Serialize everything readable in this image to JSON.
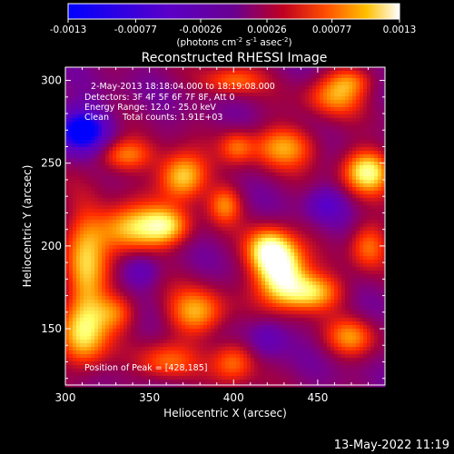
{
  "colorbar": {
    "ticks": [
      "-0.0013",
      "-0.00077",
      "-0.00026",
      "0.00026",
      "0.00077",
      "0.0013"
    ],
    "unit_label_main": "(photons cm",
    "unit_sup1": "-2",
    "unit_mid": " s",
    "unit_sup2": "-1",
    "unit_mid2": " asec",
    "unit_sup3": "-2",
    "unit_end": ")"
  },
  "chart_data": {
    "type": "heatmap",
    "title": "Reconstructed RHESSI Image",
    "xlabel": "Heliocentric X (arcsec)",
    "ylabel": "Heliocentric Y (arcsec)",
    "xlim": [
      300,
      490
    ],
    "ylim": [
      116,
      308
    ],
    "x_ticks": [
      300,
      350,
      400,
      450
    ],
    "y_ticks": [
      150,
      200,
      250,
      300
    ],
    "x_tick_labels": [
      "300",
      "350",
      "400",
      "450"
    ],
    "y_tick_labels": [
      "150",
      "200",
      "250",
      "300"
    ],
    "color_range": [
      -0.0013,
      0.0013
    ],
    "colormap": [
      "#0000ff",
      "#5a00c8",
      "#7000a0",
      "#a00040",
      "#ff2800",
      "#ff9600",
      "#ffff64",
      "#ffffff"
    ],
    "annotations": [
      "2-May-2013 18:18:04.000 to 18:19:08.000",
      "Detectors: 3F 4F 5F 6F 7F 8F, Att 0",
      "Energy Range: 12.0 - 25.0 keV",
      "Clean     Total counts: 1.91E+03"
    ],
    "peak_label": "Position of Peak = [428,185]",
    "peak": [
      428,
      185
    ],
    "blobs": [
      {
        "x": 428,
        "y": 185,
        "sx": 10,
        "sy": 12,
        "a": 1.15
      },
      {
        "x": 445,
        "y": 172,
        "sx": 13,
        "sy": 8,
        "a": 0.85
      },
      {
        "x": 420,
        "y": 198,
        "sx": 9,
        "sy": 9,
        "a": 0.8
      },
      {
        "x": 338,
        "y": 210,
        "sx": 14,
        "sy": 10,
        "a": 0.85
      },
      {
        "x": 360,
        "y": 212,
        "sx": 10,
        "sy": 8,
        "a": 0.7
      },
      {
        "x": 370,
        "y": 242,
        "sx": 10,
        "sy": 10,
        "a": 0.9
      },
      {
        "x": 395,
        "y": 225,
        "sx": 7,
        "sy": 8,
        "a": 0.55
      },
      {
        "x": 480,
        "y": 245,
        "sx": 10,
        "sy": 9,
        "a": 0.95
      },
      {
        "x": 335,
        "y": 255,
        "sx": 12,
        "sy": 7,
        "a": 0.6
      },
      {
        "x": 430,
        "y": 260,
        "sx": 14,
        "sy": 9,
        "a": 0.65
      },
      {
        "x": 312,
        "y": 185,
        "sx": 9,
        "sy": 25,
        "a": 0.7
      },
      {
        "x": 310,
        "y": 145,
        "sx": 10,
        "sy": 14,
        "a": 0.7
      },
      {
        "x": 330,
        "y": 160,
        "sx": 9,
        "sy": 8,
        "a": 0.5
      },
      {
        "x": 378,
        "y": 160,
        "sx": 12,
        "sy": 10,
        "a": 0.7
      },
      {
        "x": 360,
        "y": 130,
        "sx": 12,
        "sy": 8,
        "a": 0.5
      },
      {
        "x": 400,
        "y": 130,
        "sx": 9,
        "sy": 9,
        "a": 0.55
      },
      {
        "x": 470,
        "y": 145,
        "sx": 10,
        "sy": 8,
        "a": 0.55
      },
      {
        "x": 480,
        "y": 200,
        "sx": 8,
        "sy": 10,
        "a": 0.55
      },
      {
        "x": 460,
        "y": 290,
        "sx": 12,
        "sy": 8,
        "a": 0.55
      },
      {
        "x": 400,
        "y": 300,
        "sx": 12,
        "sy": 6,
        "a": 0.5
      },
      {
        "x": 470,
        "y": 300,
        "sx": 10,
        "sy": 6,
        "a": 0.45
      },
      {
        "x": 402,
        "y": 260,
        "sx": 7,
        "sy": 7,
        "a": 0.45
      }
    ],
    "negatives": [
      {
        "x": 310,
        "y": 270,
        "sx": 12,
        "sy": 10,
        "a": 0.75
      },
      {
        "x": 455,
        "y": 225,
        "sx": 8,
        "sy": 7,
        "a": 0.35
      },
      {
        "x": 345,
        "y": 185,
        "sx": 8,
        "sy": 7,
        "a": 0.3
      },
      {
        "x": 420,
        "y": 145,
        "sx": 8,
        "sy": 8,
        "a": 0.3
      }
    ]
  },
  "footer": {
    "date": "13-May-2022 11:19"
  }
}
